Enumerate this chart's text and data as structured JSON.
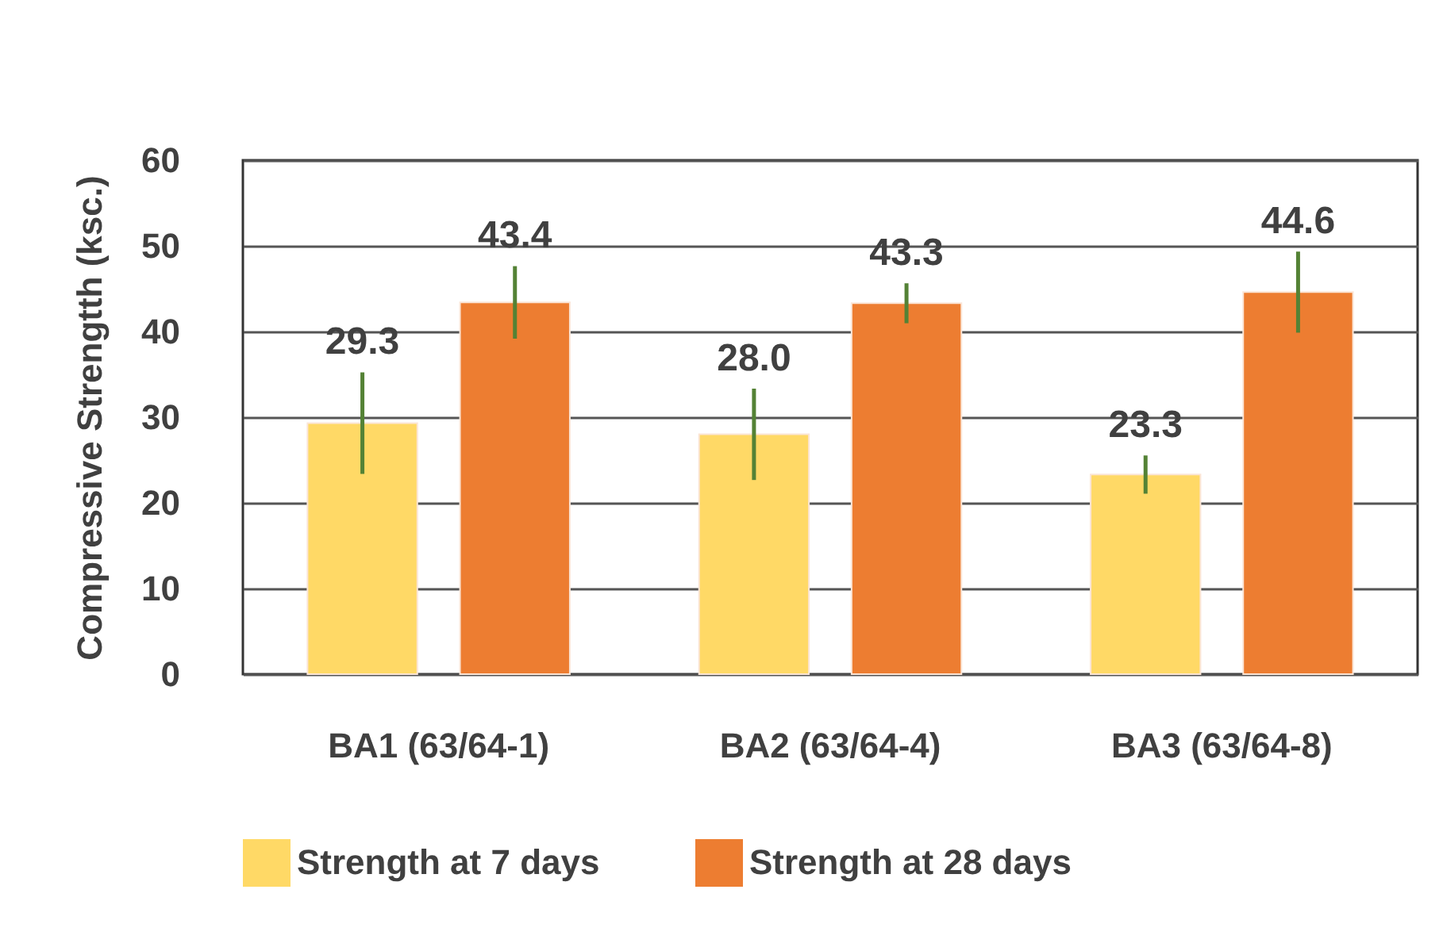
{
  "chart_data": {
    "type": "bar",
    "ylabel": "Compressive Strengtth (ksc.)",
    "categories": [
      "BA1 (63/64-1)",
      "BA2 (63/64-4)",
      "BA3 (63/64-8)"
    ],
    "series": [
      {
        "name": "Strength at 7 days",
        "color": "#ffd966",
        "values": [
          29.3,
          28.0,
          23.3
        ],
        "value_labels": [
          "29.3",
          "28.0",
          "23.3"
        ],
        "errors": [
          5.7,
          5.1,
          2.0
        ]
      },
      {
        "name": "Strength at 28 days",
        "color": "#ed7d31",
        "values": [
          43.4,
          43.3,
          44.6
        ],
        "value_labels": [
          "43.4",
          "43.3",
          "44.6"
        ],
        "errors": [
          4.0,
          2.1,
          4.5
        ]
      }
    ],
    "ylim": [
      0,
      60
    ],
    "yticks": [
      0,
      10,
      20,
      30,
      40,
      50,
      60
    ],
    "grid": "y",
    "legend": "bottom"
  }
}
